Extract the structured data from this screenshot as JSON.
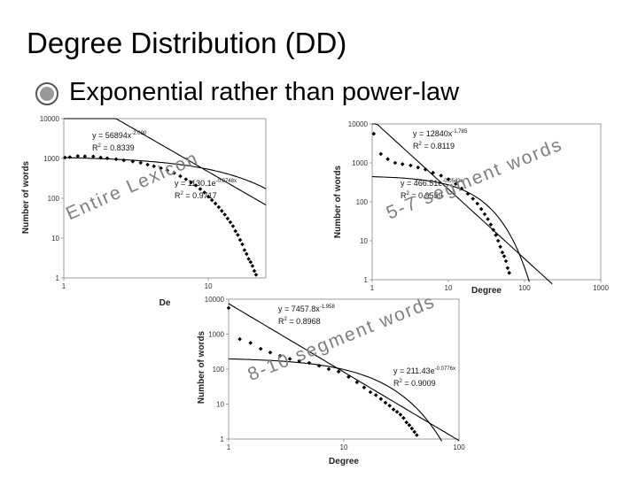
{
  "slide": {
    "title": "Degree Distribution (DD)",
    "bullet": "Exponential rather than power-law"
  },
  "colors": {
    "series": "#000000",
    "overlay": "#7f7f7f"
  },
  "chart_data": [
    {
      "type": "scatter",
      "overlay_label": "Entire Lexicon",
      "xlabel": "De",
      "ylabel": "Number of words",
      "x_ticks": [
        "1",
        "10"
      ],
      "y_ticks": [
        "10000",
        "1000",
        "100",
        "10",
        "1"
      ],
      "xlim": [
        1,
        25
      ],
      "ylim": [
        1,
        10000
      ],
      "xscale": "log",
      "yscale": "log",
      "grid": false,
      "fits": [
        {
          "label": "y = 56894x",
          "exp": "-2.090",
          "r2_label": "R",
          "r2_sup": "2",
          "r2_value": " = 0.8339",
          "kind": "power",
          "a": 56894,
          "b": -2.09
        },
        {
          "label": "y = 1130.1e",
          "exp": "-0.0748x",
          "r2_label": "R",
          "r2_sup": "2",
          "r2_value": " = 0.9717",
          "kind": "exp",
          "a": 1130.1,
          "b": -0.0748
        }
      ],
      "points": [
        [
          1.02,
          1050
        ],
        [
          1.1,
          1080
        ],
        [
          1.25,
          1150
        ],
        [
          1.4,
          1130
        ],
        [
          1.6,
          1120
        ],
        [
          1.8,
          1060
        ],
        [
          2.0,
          1010
        ],
        [
          2.3,
          960
        ],
        [
          2.6,
          900
        ],
        [
          3.0,
          840
        ],
        [
          3.4,
          780
        ],
        [
          3.8,
          700
        ],
        [
          4.2,
          640
        ],
        [
          4.7,
          570
        ],
        [
          5.2,
          500
        ],
        [
          5.8,
          430
        ],
        [
          6.4,
          360
        ],
        [
          7.0,
          300
        ],
        [
          7.6,
          250
        ],
        [
          8.2,
          210
        ],
        [
          8.8,
          170
        ],
        [
          9.4,
          140
        ],
        [
          10.0,
          110
        ],
        [
          10.6,
          90
        ],
        [
          11.2,
          74
        ],
        [
          11.8,
          60
        ],
        [
          12.4,
          48
        ],
        [
          13.0,
          39
        ],
        [
          13.6,
          31
        ],
        [
          14.2,
          25
        ],
        [
          14.8,
          20
        ],
        [
          15.4,
          15
        ],
        [
          16.0,
          12
        ],
        [
          16.6,
          9
        ],
        [
          17.2,
          7
        ],
        [
          17.8,
          5
        ],
        [
          18.4,
          4
        ],
        [
          19.0,
          3
        ],
        [
          19.6,
          2.5
        ],
        [
          20.2,
          2
        ],
        [
          20.8,
          1.5
        ],
        [
          21.4,
          1.2
        ]
      ]
    },
    {
      "type": "scatter",
      "overlay_label": "5-7 segment words",
      "xlabel": "Degree",
      "ylabel": "Number of words",
      "x_ticks": [
        "1",
        "10",
        "100",
        "1000"
      ],
      "y_ticks": [
        "10000",
        "1000",
        "100",
        "10",
        "1"
      ],
      "xlim": [
        1,
        1000
      ],
      "ylim": [
        1,
        10000
      ],
      "xscale": "log",
      "yscale": "log",
      "grid": false,
      "fits": [
        {
          "label": "y = 12840x",
          "exp": "-1.785",
          "r2_label": "R",
          "r2_sup": "2",
          "r2_value": " = 0.8119",
          "kind": "power",
          "a": 12840,
          "b": -1.785
        },
        {
          "label": "y = 466.51e",
          "exp": "-0.0542x",
          "r2_label": "R",
          "r2_sup": "2",
          "r2_value": " = 0.9559",
          "kind": "exp",
          "a": 466.51,
          "b": -0.0542
        }
      ],
      "points": [
        [
          1.05,
          5600
        ],
        [
          1.3,
          1700
        ],
        [
          1.6,
          1250
        ],
        [
          2.0,
          1000
        ],
        [
          2.5,
          930
        ],
        [
          3.2,
          860
        ],
        [
          4.0,
          760
        ],
        [
          5.0,
          680
        ],
        [
          6.3,
          560
        ],
        [
          8.0,
          470
        ],
        [
          10,
          380
        ],
        [
          12.5,
          290
        ],
        [
          15,
          220
        ],
        [
          18,
          160
        ],
        [
          21,
          120
        ],
        [
          24,
          90
        ],
        [
          27,
          65
        ],
        [
          30,
          48
        ],
        [
          33,
          36
        ],
        [
          36,
          26
        ],
        [
          39,
          19
        ],
        [
          42,
          14
        ],
        [
          45,
          10
        ],
        [
          48,
          7
        ],
        [
          51,
          5
        ],
        [
          54,
          4
        ],
        [
          57,
          3
        ],
        [
          60,
          2
        ],
        [
          63,
          1.5
        ]
      ]
    },
    {
      "type": "scatter",
      "overlay_label": "8-10 segment words",
      "xlabel": "Degree",
      "ylabel": "Number of words",
      "x_ticks": [
        "1",
        "10",
        "100"
      ],
      "y_ticks": [
        "10000",
        "1000",
        "100",
        "10",
        "1"
      ],
      "xlim": [
        1,
        100
      ],
      "ylim": [
        1,
        10000
      ],
      "xscale": "log",
      "yscale": "log",
      "grid": false,
      "fits": [
        {
          "label": "y = 7457.8x",
          "exp": "-1.958",
          "r2_label": "R",
          "r2_sup": "2",
          "r2_value": " = 0.8968",
          "kind": "power",
          "a": 7457.8,
          "b": -1.958
        },
        {
          "label": "y = 211.43e",
          "exp": "-0.0776x",
          "r2_label": "R",
          "r2_sup": "2",
          "r2_value": " = 0.9009",
          "kind": "exp",
          "a": 211.43,
          "b": -0.0776
        }
      ],
      "points": [
        [
          1.0,
          5600
        ],
        [
          1.25,
          720
        ],
        [
          1.55,
          560
        ],
        [
          1.9,
          380
        ],
        [
          2.3,
          300
        ],
        [
          2.8,
          240
        ],
        [
          3.4,
          195
        ],
        [
          4.1,
          170
        ],
        [
          5.0,
          150
        ],
        [
          6.1,
          125
        ],
        [
          7.4,
          100
        ],
        [
          9.0,
          85
        ],
        [
          11,
          60
        ],
        [
          13,
          42
        ],
        [
          15,
          30
        ],
        [
          17,
          22
        ],
        [
          19,
          18
        ],
        [
          21,
          14
        ],
        [
          23,
          11
        ],
        [
          25,
          9
        ],
        [
          27,
          7
        ],
        [
          29,
          6
        ],
        [
          31,
          5
        ],
        [
          33,
          4
        ],
        [
          35,
          3
        ],
        [
          37,
          2.5
        ],
        [
          39,
          2
        ],
        [
          41,
          1.6
        ],
        [
          43,
          1.3
        ]
      ]
    }
  ]
}
